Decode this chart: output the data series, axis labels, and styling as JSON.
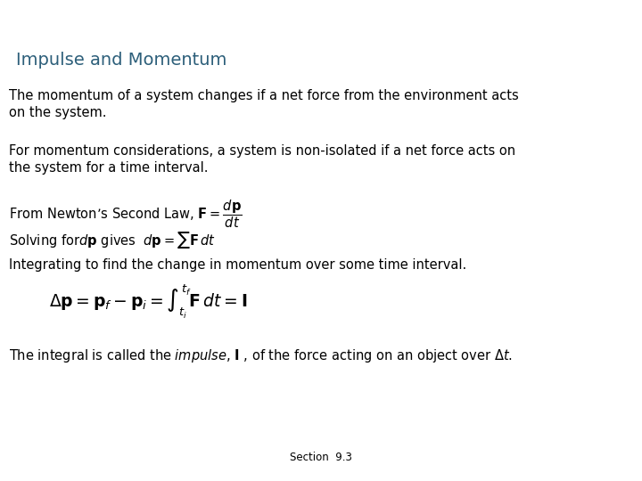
{
  "title": "Impulse and Momentum",
  "title_color": "#2d5f7a",
  "title_fontsize": 14,
  "background_color": "#ffffff",
  "text_color": "#000000",
  "body_fontsize": 10.5,
  "section_label": "Section  9.3",
  "para1": "The momentum of a system changes if a net force from the environment acts\non the system.",
  "para2": "For momentum considerations, a system is non-isolated if a net force acts on\nthe system for a time interval.",
  "line3_text": "From Newton’s Second Law, $\\mathbf{F} = \\dfrac{d\\mathbf{p}}{dt}$",
  "line4_text": "Solving for$d\\mathbf{p}$ gives  $d\\mathbf{p} = \\sum \\mathbf{F}\\,dt$",
  "line5_text": "Integrating to find the change in momentum over some time interval.",
  "big_formula": "$\\Delta\\mathbf{p} = \\mathbf{p}_f - \\mathbf{p}_i = \\int_{t_i}^{t_f} \\mathbf{F}\\,dt = \\mathbf{I}$",
  "last_line": "The integral is called the $\\mathit{impulse}$, $\\mathbf{I}$ , of the force acting on an object over $\\Delta t$."
}
